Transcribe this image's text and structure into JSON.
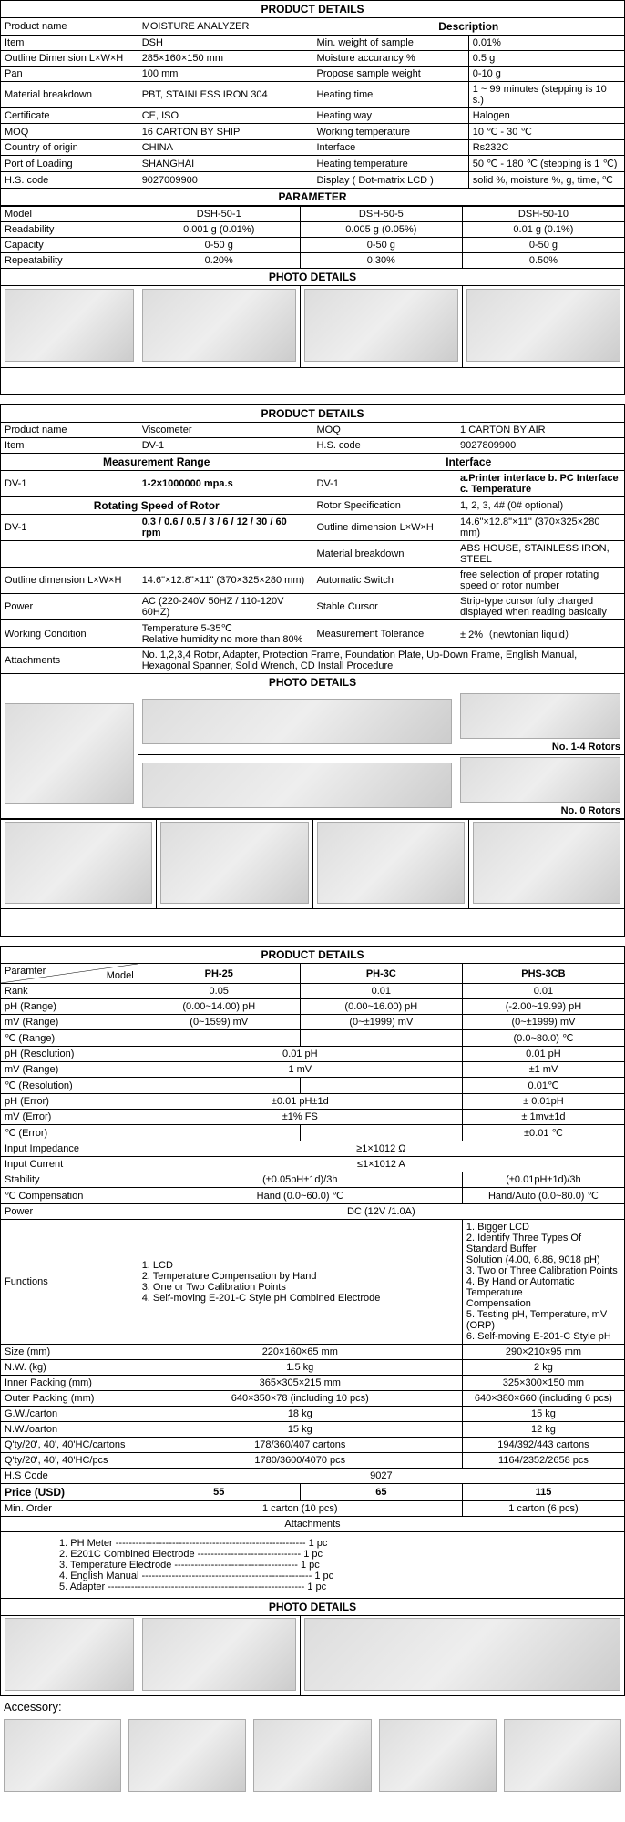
{
  "headers": {
    "product_details": "PRODUCT DETAILS",
    "description": "Description",
    "parameter": "PARAMETER",
    "photo_details": "PHOTO DETAILS",
    "measurement_range": "Measurement Range",
    "interface": "Interface",
    "rotating_speed": "Rotating Speed of Rotor",
    "accessory": "Accessory:",
    "attachments": "Attachments"
  },
  "product1": {
    "rows_left": [
      [
        "Product name",
        "MOISTURE ANALYZER"
      ],
      [
        "Item",
        "DSH"
      ],
      [
        "Outline Dimension L×W×H",
        "285×160×150 mm"
      ],
      [
        "Pan",
        "100 mm"
      ],
      [
        "Material breakdown",
        "PBT, STAINLESS IRON 304"
      ],
      [
        "Certificate",
        "CE, ISO"
      ],
      [
        "MOQ",
        "16 CARTON BY SHIP"
      ],
      [
        "Country of origin",
        "CHINA"
      ],
      [
        "Port of Loading",
        "SHANGHAI"
      ],
      [
        "H.S. code",
        "9027009900"
      ]
    ],
    "rows_right": [
      [
        "Min. weight of sample",
        "0.01%"
      ],
      [
        "Moisture accurancy %",
        "0.5 g"
      ],
      [
        "Propose sample weight",
        "0-10 g"
      ],
      [
        "Heating time",
        "1 ~ 99 minutes (stepping is 10 s.)"
      ],
      [
        "Heating way",
        "Halogen"
      ],
      [
        "Working temperature",
        "10 ℃ - 30 ℃"
      ],
      [
        "Interface",
        "Rs232C"
      ],
      [
        "Heating temperature",
        "50 ℃ - 180 ℃ (stepping is 1 ℃)"
      ],
      [
        "Display ( Dot-matrix LCD )",
        "solid %, moisture %, g, time, ℃"
      ]
    ],
    "param_header": [
      "Model",
      "DSH-50-1",
      "DSH-50-5",
      "DSH-50-10"
    ],
    "param_rows": [
      [
        "Readability",
        "0.001 g (0.01%)",
        "0.005 g (0.05%)",
        "0.01 g (0.1%)"
      ],
      [
        "Capacity",
        "0-50 g",
        "0-50 g",
        "0-50 g"
      ],
      [
        "Repeatability",
        "0.20%",
        "0.30%",
        "0.50%"
      ]
    ]
  },
  "product2": {
    "top_rows": [
      [
        "Product name",
        "Viscometer",
        "MOQ",
        "1 CARTON BY AIR"
      ],
      [
        "Item",
        "DV-1",
        "H.S. code",
        "9027809900"
      ]
    ],
    "r1": [
      "DV-1",
      "1-2×1000000 mpa.s",
      "DV-1",
      "a.Printer interface b. PC Interface c. Temperature"
    ],
    "r2_right": [
      "Rotor Specification",
      "1, 2, 3, 4# (0# optional)"
    ],
    "r3": [
      "DV-1",
      "0.3 / 0.6 / 0.5 / 3 / 6 / 12 / 30 / 60 rpm",
      "Outline dimension L×W×H",
      "14.6\"×12.8\"×11\" (370×325×280 mm)"
    ],
    "r4_right": [
      "Material breakdown",
      "ABS HOUSE, STAINLESS IRON, STEEL"
    ],
    "r5": [
      "Outline dimension L×W×H",
      "14.6\"×12.8\"×11\" (370×325×280 mm)",
      "Automatic Switch",
      "free selection of proper rotating speed or rotor number"
    ],
    "r6": [
      "Power",
      "AC (220-240V 50HZ / 110-120V 60HZ)",
      "Stable Cursor",
      "Strip-type cursor fully charged displayed when reading basically"
    ],
    "r7": [
      "Working Condition",
      "Temperature 5-35℃\nRelative humidity no more than 80%",
      "Measurement Tolerance",
      "± 2%（newtonian liquid）"
    ],
    "r8": [
      "Attachments",
      "No. 1,2,3,4 Rotor, Adapter, Protection Frame, Foundation Plate, Up-Down Frame, English Manual, Hexagonal Spanner, Solid Wrench, CD Install Procedure"
    ],
    "rotor_labels": {
      "a": "No. 1-4 Rotors",
      "b": "No. 0 Rotors"
    }
  },
  "product3": {
    "diag": {
      "tl": "Paramter",
      "br": "Model"
    },
    "models": [
      "PH-25",
      "PH-3C",
      "PHS-3CB"
    ],
    "rows": [
      [
        "Rank",
        "0.05",
        "0.01",
        "0.01"
      ],
      [
        "pH (Range)",
        "(0.00~14.00) pH",
        "(0.00~16.00) pH",
        "(-2.00~19.99) pH"
      ],
      [
        "mV (Range)",
        "(0~1599) mV",
        "(0~±1999) mV",
        "(0~±1999) mV"
      ],
      [
        "℃ (Range)",
        "",
        "",
        "(0.0~80.0) ℃"
      ],
      [
        "pH (Resolution)",
        "0.01 pH",
        null,
        "0.01 pH"
      ],
      [
        "mV (Range)",
        "1 mV",
        null,
        "±1 mV"
      ],
      [
        "℃ (Resolution)",
        "",
        "",
        "0.01℃"
      ],
      [
        "pH (Error)",
        "±0.01 pH±1d",
        null,
        "± 0.01pH"
      ],
      [
        "mV (Error)",
        "±1% FS",
        null,
        "± 1mv±1d"
      ],
      [
        "℃ (Error)",
        "",
        "",
        "±0.01 ℃"
      ]
    ],
    "full_rows": [
      [
        "Input Impedance",
        "≥1×1012 Ω"
      ],
      [
        "Input Current",
        "≤1×1012 A"
      ]
    ],
    "split_rows": [
      [
        "Stability",
        "(±0.05pH±1d)/3h",
        null,
        "(±0.01pH±1d)/3h"
      ],
      [
        "℃ Compensation",
        "Hand (0.0~60.0) ℃",
        null,
        "Hand/Auto (0.0~80.0) ℃"
      ]
    ],
    "power": [
      "Power",
      "DC (12V /1.0A)"
    ],
    "functions": {
      "label": "Functions",
      "col1": "1. LCD\n2. Temperature Compensation by Hand\n3. One or Two Calibration Points\n4. Self-moving E-201-C Style pH Combined Electrode",
      "col3": "1. Bigger LCD\n2. Identify Three Types Of Standard Buffer\nSolution (4.00, 6.86, 9018 pH)\n3. Two or Three Calibration Points\n4. By Hand or Automatic Temperature\nCompensation\n5. Testing pH, Temperature, mV (ORP)\n6. Self-moving E-201-C Style pH"
    },
    "bottom_rows": [
      [
        "Size (mm)",
        "220×160×65 mm",
        null,
        "290×210×95 mm"
      ],
      [
        "N.W. (kg)",
        "1.5 kg",
        null,
        "2 kg"
      ],
      [
        "Inner Packing (mm)",
        "365×305×215 mm",
        null,
        "325×300×150 mm"
      ],
      [
        "Outer Packing (mm)",
        "640×350×78 (including 10 pcs)",
        null,
        "640×380×660 (including 6 pcs)"
      ],
      [
        "G.W./carton",
        "18 kg",
        null,
        "15 kg"
      ],
      [
        "N.W./oarton",
        "15 kg",
        null,
        "12 kg"
      ],
      [
        "Q'ty/20', 40', 40'HC/cartons",
        "178/360/407 cartons",
        null,
        "194/392/443 cartons"
      ],
      [
        "Q'ty/20', 40', 40'HC/pcs",
        "1780/3600/4070 pcs",
        null,
        "1164/2352/2658 pcs"
      ]
    ],
    "hs": [
      "H.S Code",
      "9027"
    ],
    "price": [
      "Price (USD)",
      "55",
      "65",
      "115"
    ],
    "min_order": [
      "Min. Order",
      "1 carton (10 pcs)",
      null,
      "1 carton (6 pcs)"
    ],
    "attachments": [
      "1. PH Meter --------------------------------------------------------- 1 pc",
      "2. E201C Combined Electrode ------------------------------- 1 pc",
      "3. Temperature Electrode ------------------------------------- 1 pc",
      "4. English Manual --------------------------------------------------- 1 pc",
      "5. Adapter ----------------------------------------------------------- 1 pc"
    ]
  }
}
